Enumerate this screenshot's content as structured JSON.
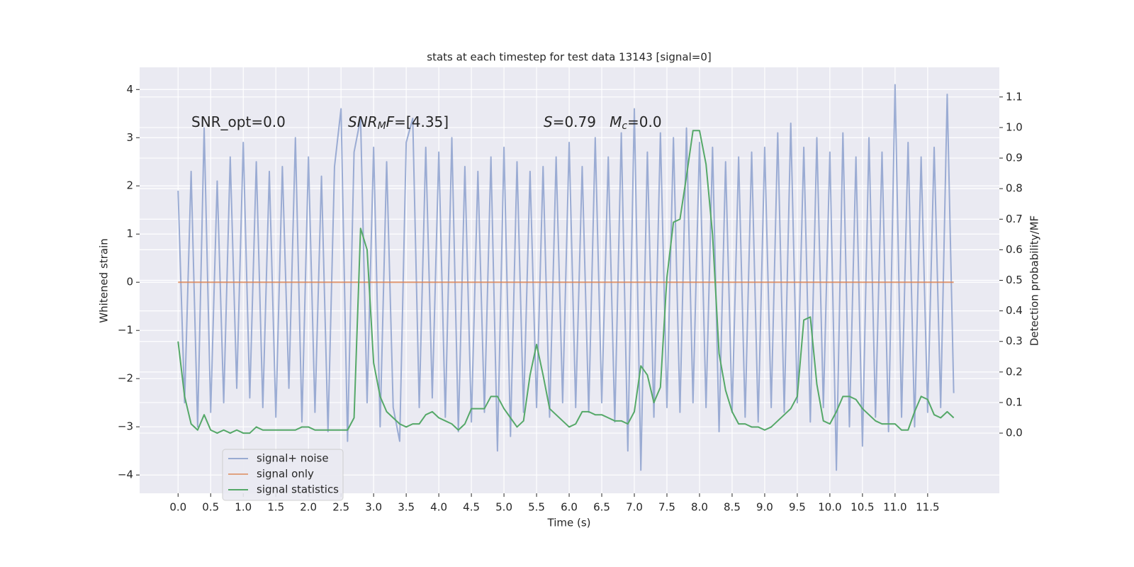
{
  "chart_data": {
    "type": "line",
    "title": "stats at each timestep for test data 13143 [signal=0]",
    "x_label": "Time (s)",
    "y_label": "Whitened strain",
    "y2_label": "Detection probability/MF",
    "annotations": [
      [
        {
          "text": "SNR_opt=0.0"
        }
      ],
      [
        {
          "text": "SNR",
          "italic": true
        },
        {
          "text": "M",
          "italic": true,
          "sub": true
        },
        {
          "text": "F",
          "italic": true
        },
        {
          "text": "=[4.35]"
        }
      ],
      [
        {
          "text": "S",
          "italic": true
        },
        {
          "text": "=0.79   "
        },
        {
          "text": "M",
          "italic": true
        },
        {
          "text": "c",
          "italic": true,
          "sub": true
        },
        {
          "text": "=0.0"
        }
      ]
    ],
    "x": [
      0.0,
      0.1,
      0.2,
      0.3,
      0.4,
      0.5,
      0.6,
      0.7,
      0.8,
      0.9,
      1.0,
      1.1,
      1.2,
      1.3,
      1.4,
      1.5,
      1.6,
      1.7,
      1.8,
      1.9,
      2.0,
      2.1,
      2.2,
      2.3,
      2.4,
      2.5,
      2.6,
      2.7,
      2.8,
      2.9,
      3.0,
      3.1,
      3.2,
      3.3,
      3.4,
      3.5,
      3.6,
      3.7,
      3.8,
      3.9,
      4.0,
      4.1,
      4.2,
      4.3,
      4.4,
      4.5,
      4.6,
      4.7,
      4.8,
      4.9,
      5.0,
      5.1,
      5.2,
      5.3,
      5.4,
      5.5,
      5.6,
      5.7,
      5.8,
      5.9,
      6.0,
      6.1,
      6.2,
      6.3,
      6.4,
      6.5,
      6.6,
      6.7,
      6.8,
      6.9,
      7.0,
      7.1,
      7.2,
      7.3,
      7.4,
      7.5,
      7.6,
      7.7,
      7.8,
      7.9,
      8.0,
      8.1,
      8.2,
      8.3,
      8.4,
      8.5,
      8.6,
      8.7,
      8.8,
      8.9,
      9.0,
      9.1,
      9.2,
      9.3,
      9.4,
      9.5,
      9.6,
      9.7,
      9.8,
      9.9,
      10.0,
      10.1,
      10.2,
      10.3,
      10.4,
      10.5,
      10.6,
      10.7,
      10.8,
      10.9,
      11.0,
      11.1,
      11.2,
      11.3,
      11.4,
      11.5,
      11.6,
      11.7,
      11.8,
      11.9
    ],
    "series": [
      {
        "name": "signal+ noise",
        "color": "#7f96c8",
        "values": [
          1.9,
          -2.5,
          2.3,
          -3.0,
          3.2,
          -2.7,
          2.1,
          -2.5,
          2.6,
          -2.2,
          2.9,
          -2.4,
          2.5,
          -2.6,
          2.3,
          -2.8,
          2.4,
          -2.2,
          3.0,
          -2.9,
          2.6,
          -2.7,
          2.2,
          -3.1,
          2.4,
          3.6,
          -3.3,
          2.7,
          3.4,
          -2.5,
          2.8,
          -3.0,
          2.5,
          -2.6,
          -3.3,
          2.9,
          3.4,
          -2.6,
          2.8,
          -2.4,
          2.7,
          -2.8,
          3.0,
          -3.1,
          2.4,
          -2.9,
          2.3,
          -2.7,
          2.6,
          -3.5,
          2.8,
          -3.2,
          2.5,
          -2.7,
          2.3,
          -2.6,
          2.4,
          -2.8,
          2.6,
          -2.5,
          2.9,
          -2.6,
          2.4,
          -2.7,
          3.0,
          -2.5,
          2.6,
          -2.9,
          3.1,
          -3.5,
          3.6,
          -3.9,
          2.7,
          -2.8,
          3.1,
          -2.6,
          3.0,
          -2.7,
          3.2,
          -2.5,
          2.9,
          -2.6,
          2.8,
          -3.1,
          2.5,
          -2.7,
          2.6,
          -2.8,
          2.7,
          -2.9,
          2.8,
          -2.6,
          3.1,
          -2.7,
          3.3,
          -2.5,
          2.8,
          -2.9,
          3.0,
          -2.6,
          2.7,
          -3.9,
          3.1,
          -3.0,
          2.6,
          -3.4,
          3.0,
          -2.8,
          2.7,
          -3.1,
          4.1,
          -2.8,
          2.9,
          -3.0,
          2.6,
          -2.7,
          2.8,
          -2.6,
          3.9,
          -2.3
        ]
      },
      {
        "name": "signal only",
        "color": "#dd8452",
        "values": [
          0,
          0,
          0,
          0,
          0,
          0,
          0,
          0,
          0,
          0,
          0,
          0,
          0,
          0,
          0,
          0,
          0,
          0,
          0,
          0,
          0,
          0,
          0,
          0,
          0,
          0,
          0,
          0,
          0,
          0,
          0,
          0,
          0,
          0,
          0,
          0,
          0,
          0,
          0,
          0,
          0,
          0,
          0,
          0,
          0,
          0,
          0,
          0,
          0,
          0,
          0,
          0,
          0,
          0,
          0,
          0,
          0,
          0,
          0,
          0,
          0,
          0,
          0,
          0,
          0,
          0,
          0,
          0,
          0,
          0,
          0,
          0,
          0,
          0,
          0,
          0,
          0,
          0,
          0,
          0,
          0,
          0,
          0,
          0,
          0,
          0,
          0,
          0,
          0,
          0,
          0,
          0,
          0,
          0,
          0,
          0,
          0,
          0,
          0,
          0,
          0,
          0,
          0,
          0,
          0,
          0,
          0,
          0,
          0,
          0,
          0,
          0,
          0,
          0,
          0,
          0,
          0,
          0,
          0,
          0
        ]
      },
      {
        "name": "signal statistics",
        "color": "#55a868",
        "axis": "y2",
        "values": [
          0.3,
          0.12,
          0.03,
          0.01,
          0.06,
          0.01,
          0.0,
          0.01,
          0.0,
          0.01,
          0.0,
          0.0,
          0.02,
          0.01,
          0.01,
          0.01,
          0.01,
          0.01,
          0.01,
          0.02,
          0.02,
          0.01,
          0.01,
          0.01,
          0.01,
          0.01,
          0.01,
          0.05,
          0.67,
          0.6,
          0.23,
          0.12,
          0.07,
          0.05,
          0.03,
          0.02,
          0.03,
          0.03,
          0.06,
          0.07,
          0.05,
          0.04,
          0.03,
          0.01,
          0.03,
          0.08,
          0.08,
          0.08,
          0.12,
          0.12,
          0.08,
          0.05,
          0.02,
          0.04,
          0.19,
          0.29,
          0.19,
          0.08,
          0.06,
          0.04,
          0.02,
          0.03,
          0.07,
          0.07,
          0.06,
          0.06,
          0.05,
          0.04,
          0.04,
          0.03,
          0.07,
          0.22,
          0.19,
          0.1,
          0.15,
          0.51,
          0.69,
          0.7,
          0.84,
          0.99,
          0.99,
          0.88,
          0.65,
          0.26,
          0.14,
          0.07,
          0.03,
          0.03,
          0.02,
          0.02,
          0.01,
          0.02,
          0.04,
          0.06,
          0.08,
          0.12,
          0.37,
          0.38,
          0.16,
          0.04,
          0.03,
          0.07,
          0.12,
          0.12,
          0.11,
          0.08,
          0.06,
          0.04,
          0.03,
          0.03,
          0.03,
          0.01,
          0.01,
          0.07,
          0.12,
          0.11,
          0.06,
          0.05,
          0.07,
          0.05
        ]
      }
    ],
    "xlim": [
      -0.59,
      12.6
    ],
    "ylim": [
      -4.38,
      4.46
    ],
    "y2lim": [
      -0.197,
      1.197
    ],
    "xticks": [
      {
        "value": 0,
        "label": "0.0"
      },
      {
        "value": 0.5,
        "label": "0.5"
      },
      {
        "value": 1,
        "label": "1.0"
      },
      {
        "value": 1.5,
        "label": "1.5"
      },
      {
        "value": 2,
        "label": "2.0"
      },
      {
        "value": 2.5,
        "label": "2.5"
      },
      {
        "value": 3,
        "label": "3.0"
      },
      {
        "value": 3.5,
        "label": "3.5"
      },
      {
        "value": 4,
        "label": "4.0"
      },
      {
        "value": 4.5,
        "label": "4.5"
      },
      {
        "value": 5,
        "label": "5.0"
      },
      {
        "value": 5.5,
        "label": "5.5"
      },
      {
        "value": 6,
        "label": "6.0"
      },
      {
        "value": 6.5,
        "label": "6.5"
      },
      {
        "value": 7,
        "label": "7.0"
      },
      {
        "value": 7.5,
        "label": "7.5"
      },
      {
        "value": 8,
        "label": "8.0"
      },
      {
        "value": 8.5,
        "label": "8.5"
      },
      {
        "value": 9,
        "label": "9.0"
      },
      {
        "value": 9.5,
        "label": "9.5"
      },
      {
        "value": 10,
        "label": "10.0"
      },
      {
        "value": 10.5,
        "label": "10.5"
      },
      {
        "value": 11,
        "label": "11.0"
      },
      {
        "value": 11.5,
        "label": "11.5"
      }
    ],
    "yticks": [
      {
        "value": -4,
        "label": "−4"
      },
      {
        "value": -3,
        "label": "−3"
      },
      {
        "value": -2,
        "label": "−2"
      },
      {
        "value": -1,
        "label": "−1"
      },
      0,
      1,
      2,
      3,
      4
    ],
    "y2ticks": [
      {
        "value": 0,
        "label": "0.0"
      },
      {
        "value": 0.1,
        "label": "0.1"
      },
      {
        "value": 0.2,
        "label": "0.2"
      },
      {
        "value": 0.3,
        "label": "0.3"
      },
      {
        "value": 0.4,
        "label": "0.4"
      },
      {
        "value": 0.5,
        "label": "0.5"
      },
      {
        "value": 0.6,
        "label": "0.6"
      },
      {
        "value": 0.7,
        "label": "0.7"
      },
      {
        "value": 0.8,
        "label": "0.8"
      },
      {
        "value": 0.9,
        "label": "0.9"
      },
      {
        "value": 1,
        "label": "1.0"
      },
      {
        "value": 1.1,
        "label": "1.1"
      }
    ],
    "grid": true,
    "legend_loc": "lower left"
  }
}
